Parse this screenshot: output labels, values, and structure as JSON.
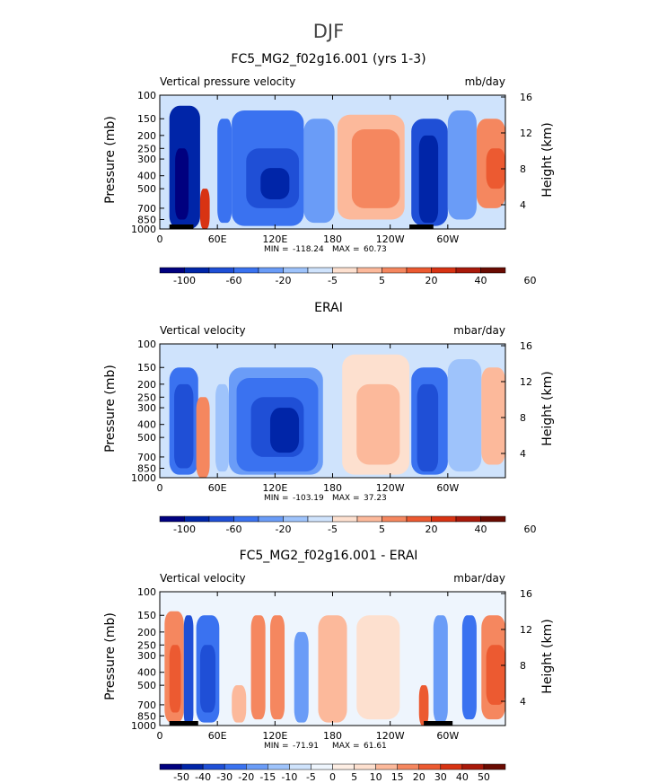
{
  "figure": {
    "title": "DJF"
  },
  "colors": {
    "scale_diverging": [
      "#00007f",
      "#0025a8",
      "#1f4fd6",
      "#3a72f0",
      "#6a9cf7",
      "#9ec3fb",
      "#cfe3fc",
      "#fde0cf",
      "#fcb99b",
      "#f5875f",
      "#ec5a31",
      "#d83313",
      "#a9190a",
      "#6a0b02"
    ],
    "scale_diff": [
      "#00007f",
      "#0025a8",
      "#1f4fd6",
      "#3a72f0",
      "#6a9cf7",
      "#9ec3fb",
      "#cfe3fc",
      "#eef5fd",
      "#fdeee4",
      "#fde0cf",
      "#fcb99b",
      "#f5875f",
      "#ec5a31",
      "#d83313",
      "#a9190a",
      "#6a0b02"
    ],
    "terrain": "#000000"
  },
  "chart_data": [
    {
      "type": "heatmap",
      "title": "FC5_MG2_f02g16.001 (yrs 1-3)",
      "left_label": "Vertical pressure velocity",
      "units": "mb/day",
      "ylabel": "Pressure (mb)",
      "ylabel_right": "Height (km)",
      "y_ticks": [
        "100",
        "150",
        "200",
        "250",
        "300",
        "400",
        "500",
        "700",
        "850",
        "1000"
      ],
      "y_right_ticks": [
        "16",
        "12",
        "8",
        "4"
      ],
      "x_ticks": [
        "0",
        "60E",
        "120E",
        "180",
        "120W",
        "60W"
      ],
      "stats": {
        "min_label": "MIN =",
        "min": "-118.24",
        "max_label": "MAX =",
        "max": "60.73"
      },
      "colorbar_labels": [
        "-100",
        "-60",
        "-20",
        "-5",
        "5",
        "20",
        "40",
        "60"
      ],
      "scale": "scale_diverging",
      "terrain": [
        [
          10,
          35
        ],
        [
          260,
          285
        ]
      ],
      "zones": [
        {
          "lon": [
            10,
            42
          ],
          "p": [
            120,
            1000
          ],
          "level": 1
        },
        {
          "lon": [
            16,
            30
          ],
          "p": [
            250,
            850
          ],
          "level": 0
        },
        {
          "lon": [
            42,
            52
          ],
          "p": [
            500,
            1000
          ],
          "level": 11
        },
        {
          "lon": [
            60,
            75
          ],
          "p": [
            150,
            900
          ],
          "level": 3
        },
        {
          "lon": [
            75,
            150
          ],
          "p": [
            130,
            950
          ],
          "level": 3
        },
        {
          "lon": [
            90,
            145
          ],
          "p": [
            250,
            700
          ],
          "level": 2
        },
        {
          "lon": [
            105,
            135
          ],
          "p": [
            350,
            600
          ],
          "level": 1
        },
        {
          "lon": [
            150,
            182
          ],
          "p": [
            150,
            900
          ],
          "level": 4
        },
        {
          "lon": [
            185,
            255
          ],
          "p": [
            140,
            850
          ],
          "level": 8
        },
        {
          "lon": [
            200,
            250
          ],
          "p": [
            180,
            700
          ],
          "level": 9
        },
        {
          "lon": [
            262,
            300
          ],
          "p": [
            150,
            950
          ],
          "level": 2
        },
        {
          "lon": [
            270,
            290
          ],
          "p": [
            200,
            900
          ],
          "level": 1
        },
        {
          "lon": [
            300,
            330
          ],
          "p": [
            130,
            850
          ],
          "level": 4
        },
        {
          "lon": [
            330,
            360
          ],
          "p": [
            150,
            700
          ],
          "level": 9
        },
        {
          "lon": [
            340,
            360
          ],
          "p": [
            250,
            500
          ],
          "level": 10
        }
      ]
    },
    {
      "type": "heatmap",
      "title": "ERAI",
      "left_label": "Vertical velocity",
      "units": "mbar/day",
      "ylabel": "Pressure (mb)",
      "ylabel_right": "Height (km)",
      "y_ticks": [
        "100",
        "150",
        "200",
        "250",
        "300",
        "400",
        "500",
        "700",
        "850",
        "1000"
      ],
      "y_right_ticks": [
        "16",
        "12",
        "8",
        "4"
      ],
      "x_ticks": [
        "0",
        "60E",
        "120E",
        "180",
        "120W",
        "60W"
      ],
      "stats": {
        "min_label": "MIN =",
        "min": "-103.19",
        "max_label": "MAX =",
        "max": "37.23"
      },
      "colorbar_labels": [
        "-100",
        "-60",
        "-20",
        "-5",
        "5",
        "20",
        "40",
        "60"
      ],
      "scale": "scale_diverging",
      "terrain": [],
      "zones": [
        {
          "lon": [
            10,
            40
          ],
          "p": [
            150,
            950
          ],
          "level": 3
        },
        {
          "lon": [
            15,
            35
          ],
          "p": [
            200,
            850
          ],
          "level": 2
        },
        {
          "lon": [
            38,
            52
          ],
          "p": [
            250,
            1000
          ],
          "level": 9
        },
        {
          "lon": [
            58,
            72
          ],
          "p": [
            200,
            900
          ],
          "level": 5
        },
        {
          "lon": [
            72,
            170
          ],
          "p": [
            150,
            950
          ],
          "level": 4
        },
        {
          "lon": [
            80,
            165
          ],
          "p": [
            180,
            900
          ],
          "level": 3
        },
        {
          "lon": [
            95,
            150
          ],
          "p": [
            250,
            700
          ],
          "level": 2
        },
        {
          "lon": [
            115,
            145
          ],
          "p": [
            300,
            650
          ],
          "level": 1
        },
        {
          "lon": [
            190,
            260
          ],
          "p": [
            120,
            950
          ],
          "level": 7
        },
        {
          "lon": [
            205,
            250
          ],
          "p": [
            200,
            800
          ],
          "level": 8
        },
        {
          "lon": [
            262,
            300
          ],
          "p": [
            150,
            950
          ],
          "level": 3
        },
        {
          "lon": [
            268,
            290
          ],
          "p": [
            200,
            900
          ],
          "level": 2
        },
        {
          "lon": [
            300,
            335
          ],
          "p": [
            130,
            900
          ],
          "level": 5
        },
        {
          "lon": [
            335,
            360
          ],
          "p": [
            150,
            800
          ],
          "level": 8
        }
      ]
    },
    {
      "type": "heatmap",
      "title": "FC5_MG2_f02g16.001 - ERAI",
      "left_label": "Vertical velocity",
      "units": "mbar/day",
      "ylabel": "Pressure (mb)",
      "ylabel_right": "Height (km)",
      "y_ticks": [
        "100",
        "150",
        "200",
        "250",
        "300",
        "400",
        "500",
        "700",
        "850",
        "1000"
      ],
      "y_right_ticks": [
        "16",
        "12",
        "8",
        "4"
      ],
      "x_ticks": [
        "0",
        "60E",
        "120E",
        "180",
        "120W",
        "60W"
      ],
      "stats": {
        "min_label": "MIN =",
        "min": "-71.91",
        "max_label": "MAX =",
        "max": "61.61"
      },
      "colorbar_labels": [
        "-50",
        "-40",
        "-30",
        "-20",
        "-15",
        "-10",
        "-5",
        "0",
        "5",
        "10",
        "15",
        "20",
        "30",
        "40",
        "50"
      ],
      "scale": "scale_diff",
      "terrain": [
        [
          10,
          40
        ],
        [
          275,
          305
        ]
      ],
      "zones": [
        {
          "lon": [
            5,
            25
          ],
          "p": [
            140,
            950
          ],
          "level": 11
        },
        {
          "lon": [
            10,
            22
          ],
          "p": [
            250,
            800
          ],
          "level": 12
        },
        {
          "lon": [
            25,
            35
          ],
          "p": [
            150,
            1000
          ],
          "level": 2
        },
        {
          "lon": [
            38,
            62
          ],
          "p": [
            150,
            950
          ],
          "level": 3
        },
        {
          "lon": [
            42,
            58
          ],
          "p": [
            250,
            800
          ],
          "level": 2
        },
        {
          "lon": [
            75,
            90
          ],
          "p": [
            500,
            950
          ],
          "level": 10
        },
        {
          "lon": [
            95,
            110
          ],
          "p": [
            150,
            900
          ],
          "level": 11
        },
        {
          "lon": [
            115,
            130
          ],
          "p": [
            150,
            900
          ],
          "level": 11
        },
        {
          "lon": [
            140,
            155
          ],
          "p": [
            200,
            950
          ],
          "level": 4
        },
        {
          "lon": [
            165,
            195
          ],
          "p": [
            150,
            950
          ],
          "level": 10
        },
        {
          "lon": [
            205,
            250
          ],
          "p": [
            150,
            900
          ],
          "level": 9
        },
        {
          "lon": [
            270,
            280
          ],
          "p": [
            500,
            1000
          ],
          "level": 12
        },
        {
          "lon": [
            285,
            300
          ],
          "p": [
            150,
            950
          ],
          "level": 4
        },
        {
          "lon": [
            315,
            330
          ],
          "p": [
            150,
            900
          ],
          "level": 3
        },
        {
          "lon": [
            335,
            360
          ],
          "p": [
            150,
            900
          ],
          "level": 11
        },
        {
          "lon": [
            340,
            360
          ],
          "p": [
            250,
            700
          ],
          "level": 12
        }
      ]
    }
  ]
}
